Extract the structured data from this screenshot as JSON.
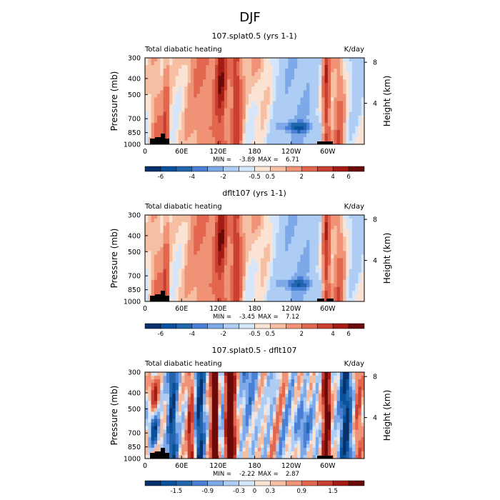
{
  "page": {
    "season_title": "DJF"
  },
  "colors": {
    "bar": [
      "#08306b",
      "#08519c",
      "#2166ac",
      "#4a7fd6",
      "#7ea9e8",
      "#aecdf4",
      "#d6e6fa",
      "#fbe3d4",
      "#f6bfa4",
      "#ef9276",
      "#e2674e",
      "#c94030",
      "#a51c14",
      "#6b0a08"
    ],
    "mask": "#000000"
  },
  "chart_data": [
    {
      "type": "heatmap",
      "title": "107.splat0.5 (yrs 1-1)",
      "left_label": "Total diabatic heating",
      "unit_label": "K/day",
      "ylabel": "Pressure (mb)",
      "ylabel_right": "Height (km)",
      "y_ticks": [
        "300",
        "400",
        "500",
        "700",
        "850",
        "1000"
      ],
      "y_tick_values": [
        300,
        400,
        500,
        700,
        850,
        1000
      ],
      "right_ticks": [
        "8",
        "4"
      ],
      "right_tick_values": [
        8,
        4
      ],
      "x_ticks": [
        "0",
        "60E",
        "120E",
        "180",
        "120W",
        "60W"
      ],
      "x_tick_values": [
        0,
        60,
        120,
        180,
        240,
        300
      ],
      "xlim": [
        0,
        360
      ],
      "ylim": [
        1000,
        300
      ],
      "stats": {
        "min_label": "MIN =",
        "min": "-3.89",
        "max_label": "MAX =",
        "max": "6.71"
      },
      "colorbar": {
        "labels": [
          "-6",
          "-4",
          "-2",
          "-0.5",
          "0.5",
          "2",
          "4",
          "6"
        ],
        "positions": [
          1,
          3,
          5,
          7,
          8,
          10,
          12,
          13
        ]
      },
      "profile": "a"
    },
    {
      "type": "heatmap",
      "title": "dflt107 (yrs 1-1)",
      "left_label": "Total diabatic heating",
      "unit_label": "K/day",
      "ylabel": "Pressure (mb)",
      "ylabel_right": "Height (km)",
      "y_ticks": [
        "300",
        "400",
        "500",
        "700",
        "850",
        "1000"
      ],
      "y_tick_values": [
        300,
        400,
        500,
        700,
        850,
        1000
      ],
      "right_ticks": [
        "8",
        "4"
      ],
      "right_tick_values": [
        8,
        4
      ],
      "x_ticks": [
        "0",
        "60E",
        "120E",
        "180",
        "120W",
        "60W"
      ],
      "x_tick_values": [
        0,
        60,
        120,
        180,
        240,
        300
      ],
      "xlim": [
        0,
        360
      ],
      "ylim": [
        1000,
        300
      ],
      "stats": {
        "min_label": "MIN =",
        "min": "-3.45",
        "max_label": "MAX =",
        "max": "7.12"
      },
      "colorbar": {
        "labels": [
          "-6",
          "-4",
          "-2",
          "-0.5",
          "0.5",
          "2",
          "4",
          "6"
        ],
        "positions": [
          1,
          3,
          5,
          7,
          8,
          10,
          12,
          13
        ]
      },
      "profile": "b"
    },
    {
      "type": "heatmap",
      "title": "107.splat0.5 - dflt107",
      "left_label": "Total diabatic heating",
      "unit_label": "K/day",
      "ylabel": "Pressure (mb)",
      "ylabel_right": "Height (km)",
      "y_ticks": [
        "300",
        "400",
        "500",
        "700",
        "850",
        "1000"
      ],
      "y_tick_values": [
        300,
        400,
        500,
        700,
        850,
        1000
      ],
      "right_ticks": [
        "8",
        "4"
      ],
      "right_tick_values": [
        8,
        4
      ],
      "x_ticks": [
        "0",
        "60E",
        "120E",
        "180",
        "120W",
        "60W"
      ],
      "x_tick_values": [
        0,
        60,
        120,
        180,
        240,
        300
      ],
      "xlim": [
        0,
        360
      ],
      "ylim": [
        1000,
        300
      ],
      "stats": {
        "min_label": "MIN =",
        "min": "-2.22",
        "max_label": "MAX =",
        "max": "2.87"
      },
      "colorbar": {
        "labels": [
          "-1.5",
          "-0.9",
          "-0.3",
          "0",
          "0.3",
          "0.9",
          "1.5"
        ],
        "positions": [
          2,
          4,
          6,
          7,
          8,
          10,
          12
        ]
      },
      "profile": "c"
    }
  ]
}
